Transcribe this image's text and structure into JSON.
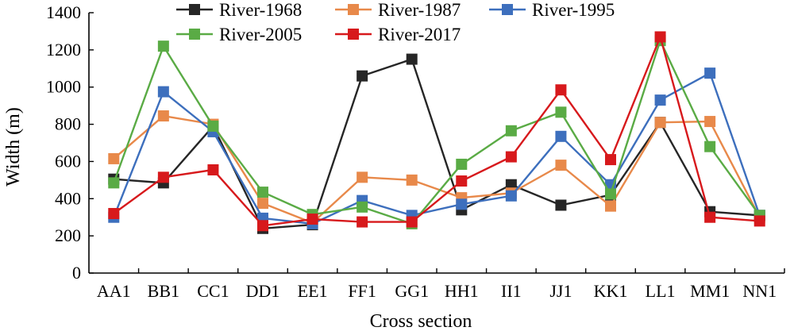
{
  "chart_data": {
    "type": "line",
    "xlabel": "Cross section",
    "ylabel": "Width (m)",
    "ylim": [
      0,
      1400
    ],
    "yticks": [
      0,
      200,
      400,
      600,
      800,
      1000,
      1200,
      1400
    ],
    "grid": false,
    "legend_position": "top",
    "categories": [
      "AA1",
      "BB1",
      "CC1",
      "DD1",
      "EE1",
      "FF1",
      "GG1",
      "HH1",
      "II1",
      "JJ1",
      "KK1",
      "LL1",
      "MM1",
      "NN1"
    ],
    "series": [
      {
        "name": "River-1968",
        "color": "#262626",
        "values": [
          505,
          485,
          790,
          240,
          260,
          1060,
          1150,
          340,
          475,
          365,
          420,
          810,
          330,
          310
        ]
      },
      {
        "name": "River-1987",
        "color": "#e8894a",
        "values": [
          615,
          845,
          800,
          375,
          270,
          515,
          500,
          405,
          430,
          580,
          360,
          810,
          815,
          300
        ]
      },
      {
        "name": "River-1995",
        "color": "#3d6fbd",
        "values": [
          300,
          975,
          760,
          295,
          265,
          390,
          310,
          370,
          415,
          735,
          475,
          930,
          1075,
          310
        ]
      },
      {
        "name": "River-2005",
        "color": "#5aab45",
        "values": [
          485,
          1220,
          790,
          435,
          315,
          355,
          265,
          585,
          765,
          865,
          425,
          1250,
          680,
          310
        ]
      },
      {
        "name": "River-2017",
        "color": "#d7191c",
        "values": [
          320,
          515,
          555,
          255,
          290,
          275,
          275,
          495,
          625,
          985,
          610,
          1270,
          300,
          280
        ]
      }
    ]
  }
}
